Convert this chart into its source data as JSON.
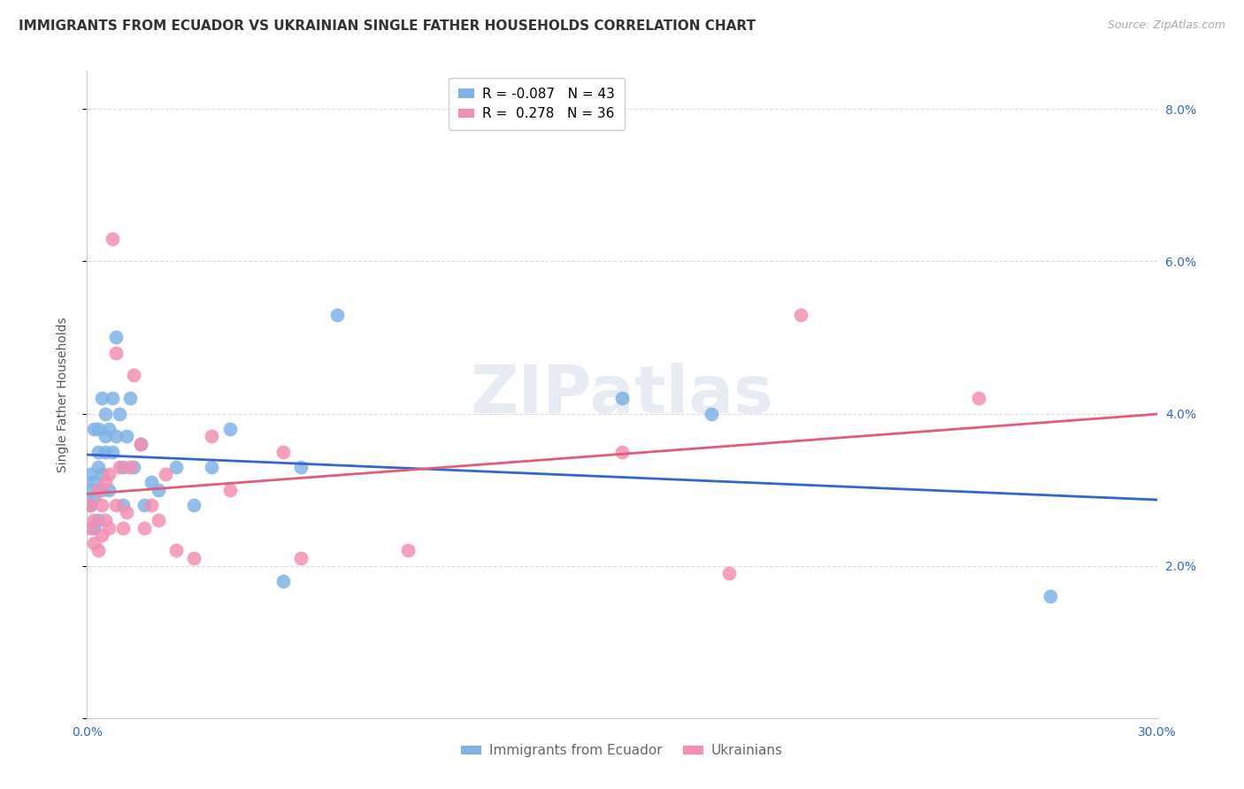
{
  "title": "IMMIGRANTS FROM ECUADOR VS UKRAINIAN SINGLE FATHER HOUSEHOLDS CORRELATION CHART",
  "source": "Source: ZipAtlas.com",
  "ylabel": "Single Father Households",
  "xlim": [
    0.0,
    0.3
  ],
  "ylim": [
    0.0,
    0.085
  ],
  "xticks": [
    0.0,
    0.05,
    0.1,
    0.15,
    0.2,
    0.25,
    0.3
  ],
  "xtick_labels": [
    "0.0%",
    "",
    "",
    "",
    "",
    "",
    "30.0%"
  ],
  "yticks": [
    0.0,
    0.02,
    0.04,
    0.06,
    0.08
  ],
  "ytick_labels_right": [
    "",
    "2.0%",
    "4.0%",
    "6.0%",
    "8.0%"
  ],
  "background_color": "#ffffff",
  "grid_color": "#dddddd",
  "watermark": "ZIPatlas",
  "blue_color": "#7EB3E8",
  "pink_color": "#F48FB1",
  "blue_line_color": "#3366CC",
  "pink_line_color": "#E05C7A",
  "ecuador_x": [
    0.001,
    0.001,
    0.001,
    0.002,
    0.002,
    0.002,
    0.002,
    0.003,
    0.003,
    0.003,
    0.003,
    0.004,
    0.004,
    0.004,
    0.005,
    0.005,
    0.005,
    0.006,
    0.006,
    0.007,
    0.007,
    0.008,
    0.008,
    0.009,
    0.01,
    0.01,
    0.011,
    0.012,
    0.013,
    0.015,
    0.016,
    0.018,
    0.02,
    0.025,
    0.03,
    0.035,
    0.04,
    0.055,
    0.06,
    0.07,
    0.15,
    0.175,
    0.27
  ],
  "ecuador_y": [
    0.028,
    0.03,
    0.032,
    0.025,
    0.029,
    0.031,
    0.038,
    0.026,
    0.033,
    0.035,
    0.038,
    0.03,
    0.032,
    0.042,
    0.035,
    0.037,
    0.04,
    0.03,
    0.038,
    0.035,
    0.042,
    0.037,
    0.05,
    0.04,
    0.028,
    0.033,
    0.037,
    0.042,
    0.033,
    0.036,
    0.028,
    0.031,
    0.03,
    0.033,
    0.028,
    0.033,
    0.038,
    0.018,
    0.033,
    0.053,
    0.042,
    0.04,
    0.016
  ],
  "ukrainian_x": [
    0.001,
    0.001,
    0.002,
    0.002,
    0.003,
    0.003,
    0.004,
    0.004,
    0.005,
    0.005,
    0.006,
    0.006,
    0.007,
    0.008,
    0.008,
    0.009,
    0.01,
    0.011,
    0.012,
    0.013,
    0.015,
    0.016,
    0.018,
    0.02,
    0.022,
    0.025,
    0.03,
    0.035,
    0.04,
    0.055,
    0.06,
    0.09,
    0.15,
    0.18,
    0.2,
    0.25
  ],
  "ukrainian_y": [
    0.025,
    0.028,
    0.023,
    0.026,
    0.022,
    0.03,
    0.024,
    0.028,
    0.026,
    0.031,
    0.025,
    0.032,
    0.063,
    0.048,
    0.028,
    0.033,
    0.025,
    0.027,
    0.033,
    0.045,
    0.036,
    0.025,
    0.028,
    0.026,
    0.032,
    0.022,
    0.021,
    0.037,
    0.03,
    0.035,
    0.021,
    0.022,
    0.035,
    0.019,
    0.053,
    0.042
  ],
  "ecuador_R": -0.087,
  "ecuador_N": 43,
  "ukrainian_R": 0.278,
  "ukrainian_N": 36,
  "title_fontsize": 11,
  "source_fontsize": 9,
  "ylabel_fontsize": 10,
  "tick_fontsize": 10,
  "legend_fontsize": 11
}
